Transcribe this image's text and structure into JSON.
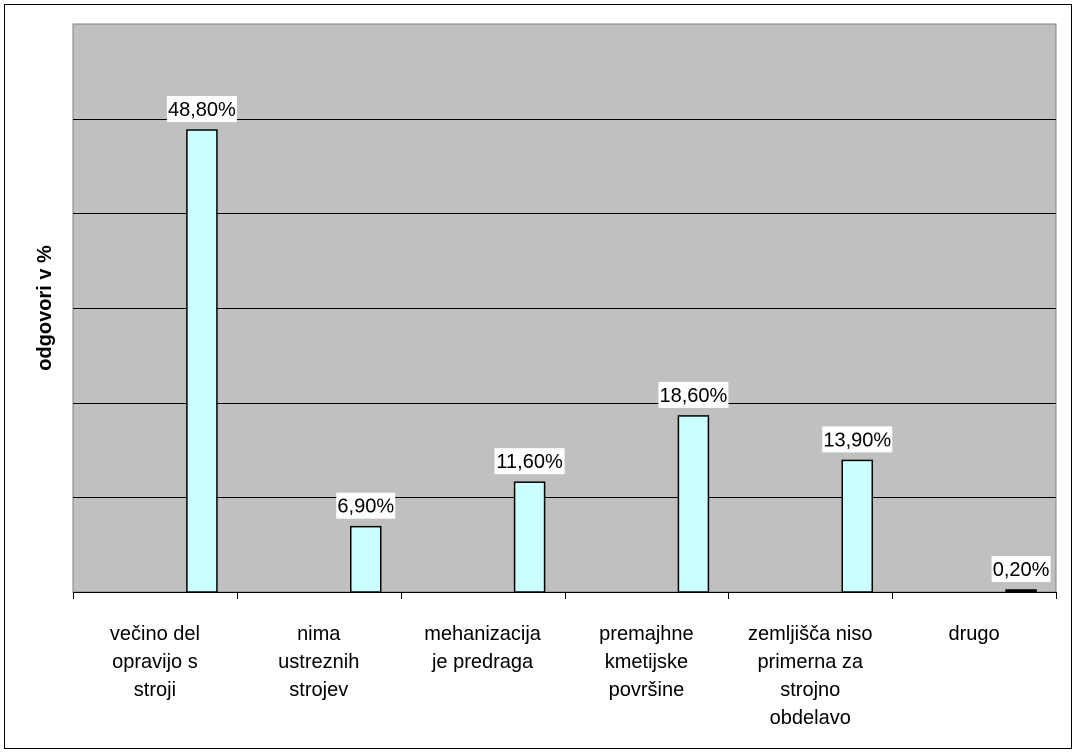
{
  "colors": {
    "plot_background": "#c0c0c0",
    "bar_fill": "#ccffff",
    "bar_small_fill": "#000000",
    "gridline": "#000000"
  },
  "chart_data": {
    "type": "bar",
    "title": "",
    "xlabel": "",
    "ylabel": "odgovori v %",
    "ylim": [
      0,
      60
    ],
    "gridlines_y": [
      10,
      20,
      30,
      40,
      50
    ],
    "grid": true,
    "legend": "none",
    "categories": [
      [
        "večino del",
        "opravijo s",
        "stroji"
      ],
      [
        "nima",
        "ustreznih",
        "strojev"
      ],
      [
        "mehanizacija",
        "je predraga"
      ],
      [
        "premajhne",
        "kmetijske",
        "površine"
      ],
      [
        "zemljišča niso",
        "primerna za",
        "strojno",
        "obdelavo"
      ],
      [
        "drugo"
      ]
    ],
    "values": [
      48.8,
      6.9,
      11.6,
      18.6,
      13.9,
      0.2
    ],
    "data_labels": [
      "48,80%",
      "6,90%",
      "11,60%",
      "18,60%",
      "13,90%",
      "0,20%"
    ]
  }
}
